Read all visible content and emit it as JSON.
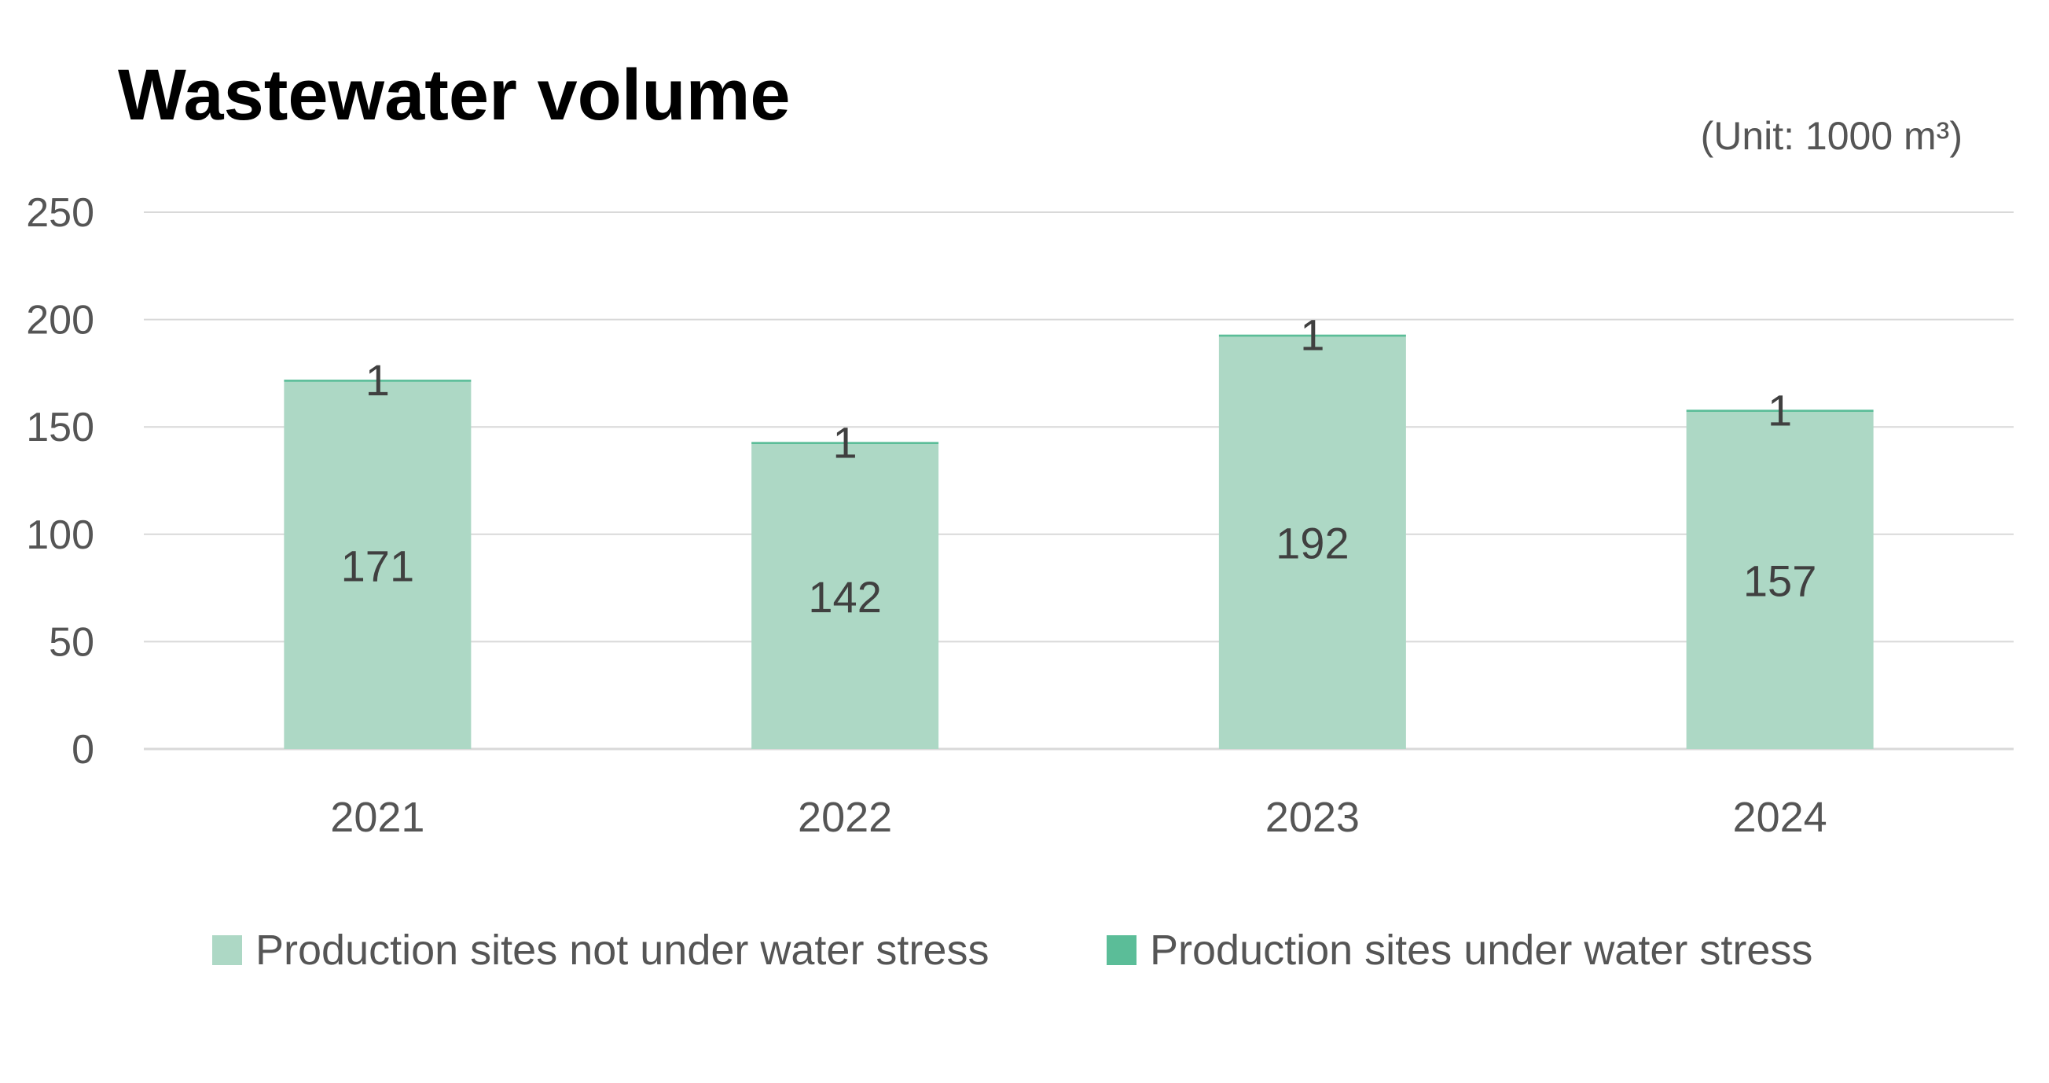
{
  "chart_data": {
    "type": "bar",
    "stacked": true,
    "title": "Wastewater volume",
    "unit_label": "(Unit: 1000 m³)",
    "categories": [
      "2021",
      "2022",
      "2023",
      "2024"
    ],
    "series": [
      {
        "name": "Production sites not under water stress",
        "values": [
          171,
          142,
          192,
          157
        ],
        "color": "#add8c5"
      },
      {
        "name": "Production sites under water stress",
        "values": [
          1,
          1,
          1,
          1
        ],
        "color": "#5bbd98"
      }
    ],
    "ylim": [
      0,
      250
    ],
    "yticks": [
      0,
      50,
      100,
      150,
      200,
      250
    ],
    "grid": true,
    "legend_position": "bottom",
    "colors": {
      "gridline": "#d9d9d9",
      "tick_text": "#555555",
      "data_label": "#404040"
    }
  }
}
